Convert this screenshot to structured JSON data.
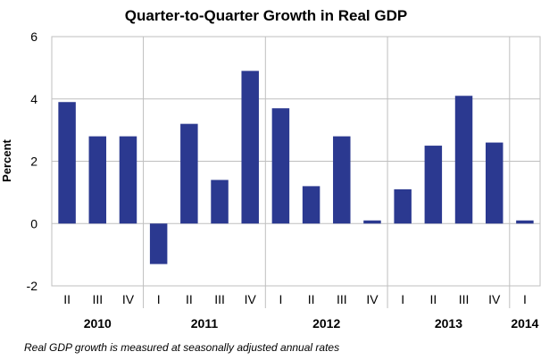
{
  "chart_data": {
    "type": "bar",
    "title": "Quarter-to-Quarter Growth in Real GDP",
    "ylabel": "Percent",
    "xlabel": "",
    "ylim": [
      -2,
      6
    ],
    "yticks": [
      -2,
      0,
      2,
      4,
      6
    ],
    "grid": true,
    "legend": "none",
    "bar_color": "#2b3990",
    "categories": [
      "II",
      "III",
      "IV",
      "I",
      "II",
      "III",
      "IV",
      "I",
      "II",
      "III",
      "IV",
      "I",
      "II",
      "III",
      "IV",
      "I"
    ],
    "years": [
      {
        "label": "2010",
        "first": 0,
        "last": 2
      },
      {
        "label": "2011",
        "first": 3,
        "last": 6
      },
      {
        "label": "2012",
        "first": 7,
        "last": 10
      },
      {
        "label": "2013",
        "first": 11,
        "last": 14
      },
      {
        "label": "2014",
        "first": 15,
        "last": 15
      }
    ],
    "series": [
      {
        "values": [
          3.9,
          2.8,
          2.8,
          -1.3,
          3.2,
          1.4,
          4.9,
          3.7,
          1.2,
          2.8,
          0.1,
          1.1,
          2.5,
          4.1,
          2.6,
          0.1
        ]
      }
    ],
    "note": "Real GDP growth is measured at seasonally adjusted annual rates"
  }
}
